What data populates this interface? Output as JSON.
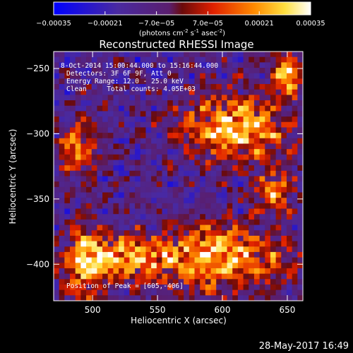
{
  "chart_data": {
    "type": "heatmap",
    "title": "Reconstructed RHESSI Image",
    "xlabel": "Heliocentric X (arcsec)",
    "ylabel": "Heliocentric Y (arcsec)",
    "xlim": [
      470,
      662
    ],
    "ylim": [
      -428,
      -237
    ],
    "x_ticks": [
      500,
      550,
      600,
      650
    ],
    "y_ticks": [
      -250,
      -300,
      -350,
      -400
    ],
    "colorbar": {
      "range": [
        -0.00035,
        0.00035
      ],
      "tick_labels": [
        "-0.00035",
        "-0.00021",
        "-7.0e-05",
        "7.0e-05",
        "0.00021",
        "0.00035"
      ],
      "units_label": "(photons cm",
      "units_exp1": "-2",
      "units_mid": " s",
      "units_exp2": "-1",
      "units_mid2": " asec",
      "units_exp3": "-2",
      "units_end": ")",
      "colormap": "blue-purple-red-yellow-white"
    },
    "annotations": [
      "8-Oct-2014 15:00:44.000 to 15:16:44.000",
      "Detectors: 3F 6F 9F, Att 0",
      "Energy Range: 12.0 - 25.0 keV",
      "Clean     Total counts: 4.05E+03"
    ],
    "peak_label": "Position of Peak = [605,-406]",
    "peak": [
      605,
      -406
    ],
    "bright_regions": [
      {
        "center": [
          610,
          -295
        ],
        "extent": [
          40,
          25
        ],
        "level": 0.00033
      },
      {
        "center": [
          650,
          -255
        ],
        "extent": [
          10,
          15
        ],
        "level": 0.00035
      },
      {
        "center": [
          600,
          -395
        ],
        "extent": [
          50,
          25
        ],
        "level": 0.0003
      },
      {
        "center": [
          525,
          -395
        ],
        "extent": [
          35,
          15
        ],
        "level": 0.00026
      },
      {
        "center": [
          495,
          -400
        ],
        "extent": [
          15,
          30
        ],
        "level": 0.00024
      },
      {
        "center": [
          490,
          -310
        ],
        "extent": [
          15,
          20
        ],
        "level": 0.00022
      },
      {
        "center": [
          640,
          -345
        ],
        "extent": [
          15,
          15
        ],
        "level": 0.0002
      }
    ]
  },
  "footer": {
    "date": "28-May-2017 16:49"
  }
}
